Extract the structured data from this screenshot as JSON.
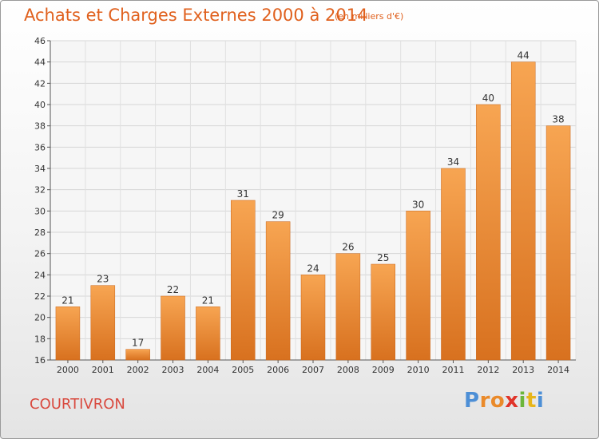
{
  "chart_data": {
    "type": "bar",
    "title": "Achats et Charges Externes 2000 à 2014",
    "unit_label": "(en milliers d'€)",
    "categories": [
      "2000",
      "2001",
      "2002",
      "2003",
      "2004",
      "2005",
      "2006",
      "2007",
      "2008",
      "2009",
      "2010",
      "2011",
      "2012",
      "2013",
      "2014"
    ],
    "values": [
      21,
      23,
      17,
      22,
      21,
      31,
      29,
      24,
      26,
      25,
      30,
      34,
      40,
      44,
      38
    ],
    "xlabel": "",
    "ylabel": "",
    "ylim": [
      16,
      46
    ],
    "yticks": [
      16,
      18,
      20,
      22,
      24,
      26,
      28,
      30,
      32,
      34,
      36,
      38,
      40,
      42,
      44,
      46
    ],
    "grid": true,
    "bar_color": "#f0913a"
  },
  "commune": "COURTIVRON",
  "logo": {
    "parts": [
      "P",
      "ro",
      "x",
      "i",
      "t",
      "i"
    ]
  }
}
